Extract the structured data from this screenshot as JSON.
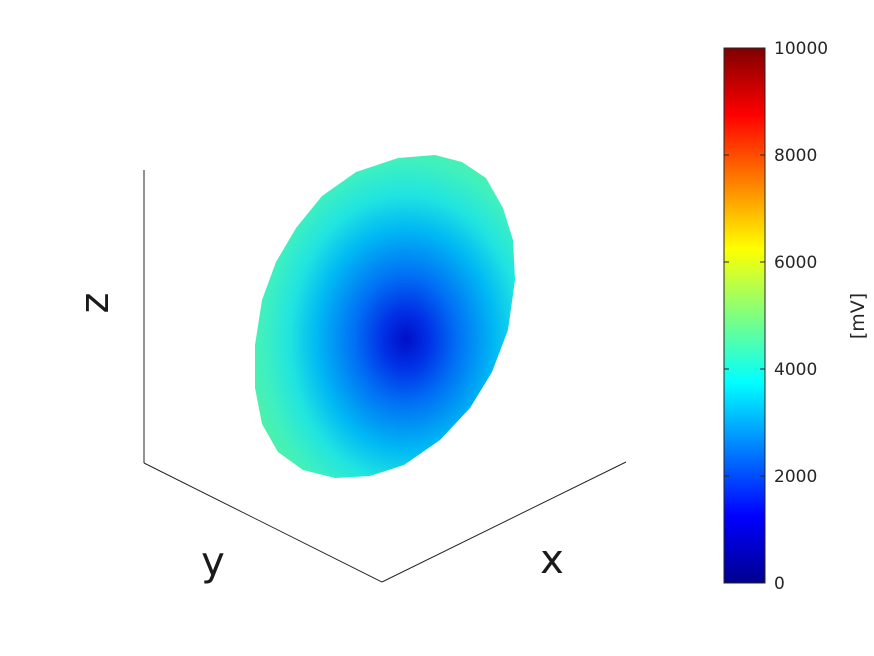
{
  "chart_data": {
    "type": "surface3d",
    "axes": {
      "xlabel": "x",
      "ylabel": "y",
      "zlabel": "z"
    },
    "colormap": "jet",
    "colorbar": {
      "label": "[mV]",
      "clim": [
        0,
        10000
      ],
      "ticks": [
        "0",
        "2000",
        "4000",
        "6000",
        "8000",
        "10000"
      ],
      "position": "right"
    },
    "surface": {
      "shape": "ellipsoid",
      "value_range": [
        0,
        4500
      ],
      "center_value": 0,
      "rim_value": 4500
    },
    "grid": false
  }
}
